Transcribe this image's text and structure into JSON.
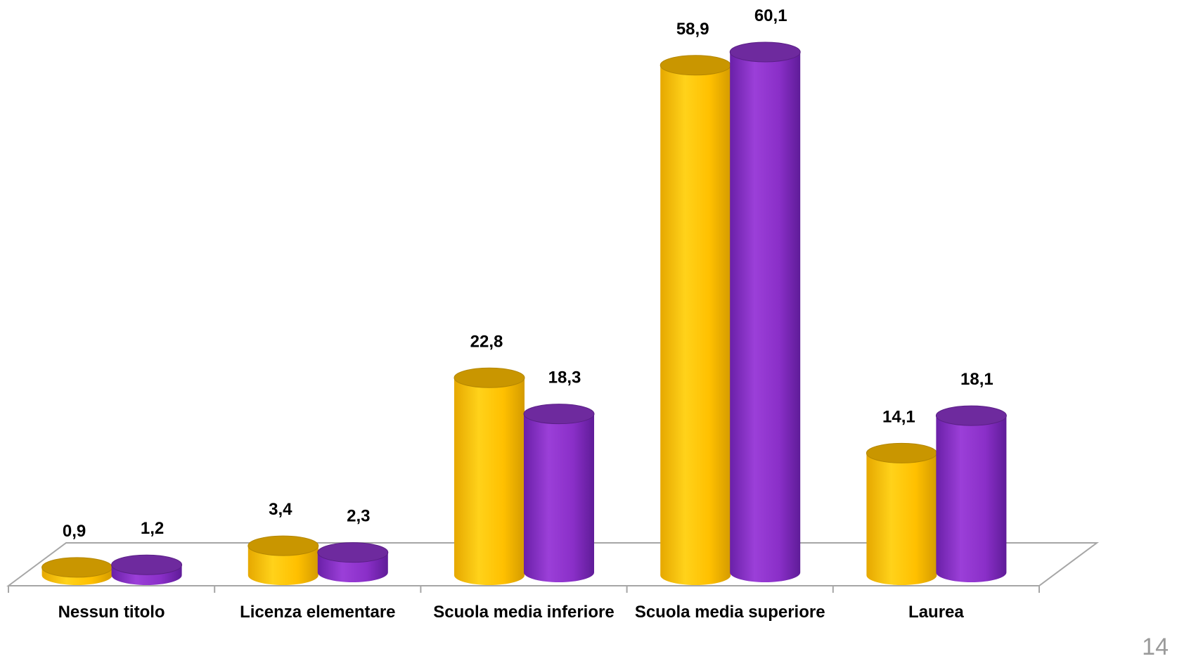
{
  "chart_data": {
    "type": "bar",
    "style": "3d-cylinder",
    "categories": [
      "Nessun titolo",
      "Licenza elementare",
      "Scuola media inferiore",
      "Scuola media superiore",
      "Laurea"
    ],
    "series": [
      {
        "values": [
          0.9,
          3.4,
          22.8,
          58.9,
          14.1
        ],
        "labels": [
          "0,9",
          "3,4",
          "22,8",
          "58,9",
          "14,1"
        ],
        "color": "#ffc000"
      },
      {
        "values": [
          1.2,
          2.3,
          18.3,
          60.1,
          18.1
        ],
        "labels": [
          "1,2",
          "2,3",
          "18,3",
          "60,1",
          "18,1"
        ],
        "color": "#8a2fc8"
      }
    ],
    "ylim": [
      0,
      60.1
    ],
    "grid": false,
    "legend": "none"
  },
  "page": {
    "number": "14"
  }
}
